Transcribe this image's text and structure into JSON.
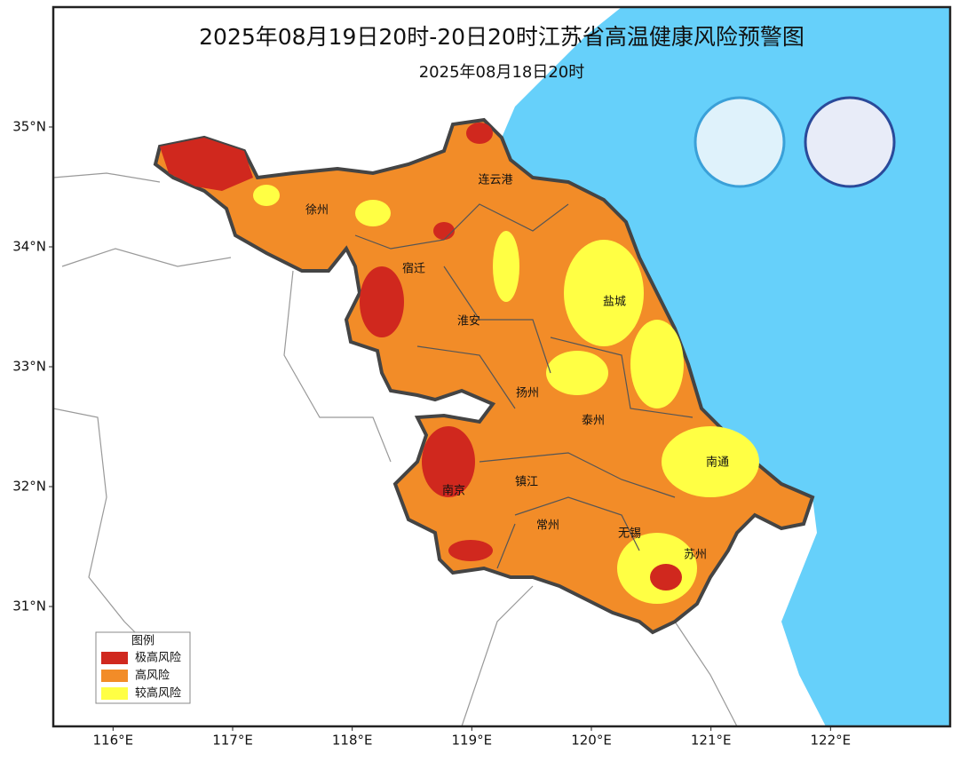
{
  "map": {
    "title": "2025年08月19日20时-20日20时江苏省高温健康风险预警图",
    "subtitle": "2025年08月18日20时",
    "xlim": [
      115.5,
      123
    ],
    "ylim": [
      30,
      36
    ],
    "xticks": [
      {
        "value": 116,
        "label": "116°E"
      },
      {
        "value": 117,
        "label": "117°E"
      },
      {
        "value": 118,
        "label": "118°E"
      },
      {
        "value": 119,
        "label": "119°E"
      },
      {
        "value": 120,
        "label": "120°E"
      },
      {
        "value": 121,
        "label": "121°E"
      },
      {
        "value": 122,
        "label": "122°E"
      }
    ],
    "yticks": [
      {
        "value": 31,
        "label": "31°N"
      },
      {
        "value": 32,
        "label": "32°N"
      },
      {
        "value": 33,
        "label": "33°N"
      },
      {
        "value": 34,
        "label": "34°N"
      },
      {
        "value": 35,
        "label": "35°N"
      }
    ],
    "cities": [
      "徐州",
      "连云港",
      "宿迁",
      "淮安",
      "盐城",
      "扬州",
      "泰州",
      "南通",
      "南京",
      "镇江",
      "常州",
      "无锡",
      "苏州"
    ],
    "legend": {
      "title": "图例",
      "items": [
        {
          "name": "极高风险",
          "color": "#d0281e"
        },
        {
          "name": "高风险",
          "color": "#f28c28"
        },
        {
          "name": "较高风险",
          "color": "#ffff44"
        }
      ]
    }
  }
}
